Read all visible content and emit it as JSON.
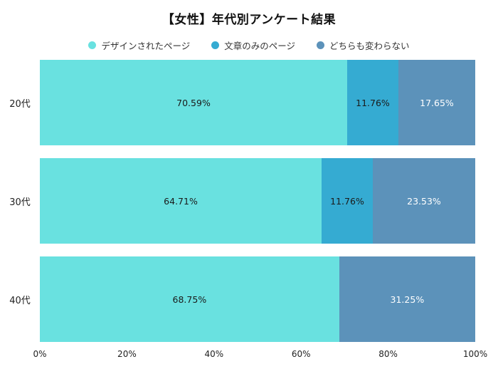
{
  "title": "【女性】年代別アンケート結果",
  "chart_data": {
    "type": "bar",
    "orientation": "horizontal",
    "stacked": true,
    "title": "【女性】年代別アンケート結果",
    "categories": [
      "20代",
      "30代",
      "40代"
    ],
    "series": [
      {
        "name": "デザインされたページ",
        "color": "#69E1E0",
        "label_color": "#1a1a1a",
        "values": [
          70.59,
          64.71,
          68.75
        ]
      },
      {
        "name": "文章のみのページ",
        "color": "#35ABD2",
        "label_color": "#1a1a1a",
        "values": [
          11.76,
          11.76,
          0
        ]
      },
      {
        "name": "どちらも変わらない",
        "color": "#5C92BA",
        "label_color": "#ffffff",
        "values": [
          17.65,
          23.53,
          31.25
        ]
      }
    ],
    "value_labels": [
      [
        "70.59%",
        "11.76%",
        "17.65%"
      ],
      [
        "64.71%",
        "11.76%",
        "23.53%"
      ],
      [
        "68.75%",
        "",
        "31.25%"
      ]
    ],
    "xlim": [
      0,
      100
    ],
    "x_tick_values": [
      0,
      20,
      40,
      60,
      80,
      100
    ],
    "x_tick_labels": [
      "0%",
      "20%",
      "40%",
      "60%",
      "80%",
      "100%"
    ],
    "grid": false,
    "legend_position": "top",
    "background": "#FFFFFF"
  }
}
